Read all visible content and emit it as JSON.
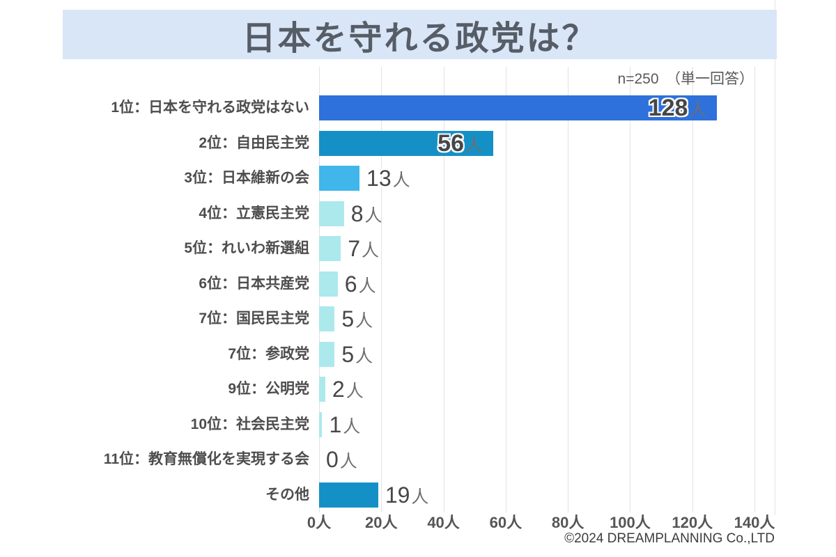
{
  "header": {
    "title": "日本を守れる政党は？",
    "banner_color": "#d9e6f8"
  },
  "survey_note": {
    "text": "n=250　（単一回答）"
  },
  "footer": {
    "copyright": "©2024 DREAMPLANNING Co.,LTD"
  },
  "chart_data": {
    "type": "bar",
    "orientation": "horizontal",
    "title": "日本を守れる政党は？",
    "sample_size_note": "n=250（単一回答）",
    "unit": "人",
    "categories": [
      "1位：日本を守れる政党はない",
      "2位：自由民主党",
      "3位：日本維新の会",
      "4位：立憲民主党",
      "5位：れいわ新選組",
      "6位：日本共産党",
      "7位：国民民主党",
      "7位：参政党",
      "9位：公明党",
      "10位：社会民主党",
      "11位：教育無償化を実現する会",
      "その他"
    ],
    "values": [
      128,
      56,
      13,
      8,
      7,
      6,
      5,
      5,
      2,
      1,
      0,
      19
    ],
    "value_labels": [
      "128人",
      "56人",
      "13人",
      "8人",
      "7人",
      "6人",
      "5人",
      "5人",
      "2人",
      "1人",
      "0人",
      "19人"
    ],
    "bar_colors": [
      "#2e71da",
      "#1590c6",
      "#41b6ea",
      "#abe9ed",
      "#abe9ed",
      "#abe9ed",
      "#abe9ed",
      "#abe9ed",
      "#abe9ed",
      "#abe9ed",
      "#abe9ed",
      "#1590c6"
    ],
    "value_label_inside": [
      true,
      true,
      false,
      false,
      false,
      false,
      false,
      false,
      false,
      false,
      false,
      false
    ],
    "xlim": [
      0,
      140
    ],
    "x_ticks": [
      0,
      20,
      40,
      60,
      80,
      100,
      120,
      140
    ],
    "x_tick_labels": [
      "0人",
      "20人",
      "40人",
      "60人",
      "80人",
      "100人",
      "120人",
      "140人"
    ],
    "grid": true,
    "gridline_color": "#e2e2e2",
    "legend_position": "none"
  }
}
